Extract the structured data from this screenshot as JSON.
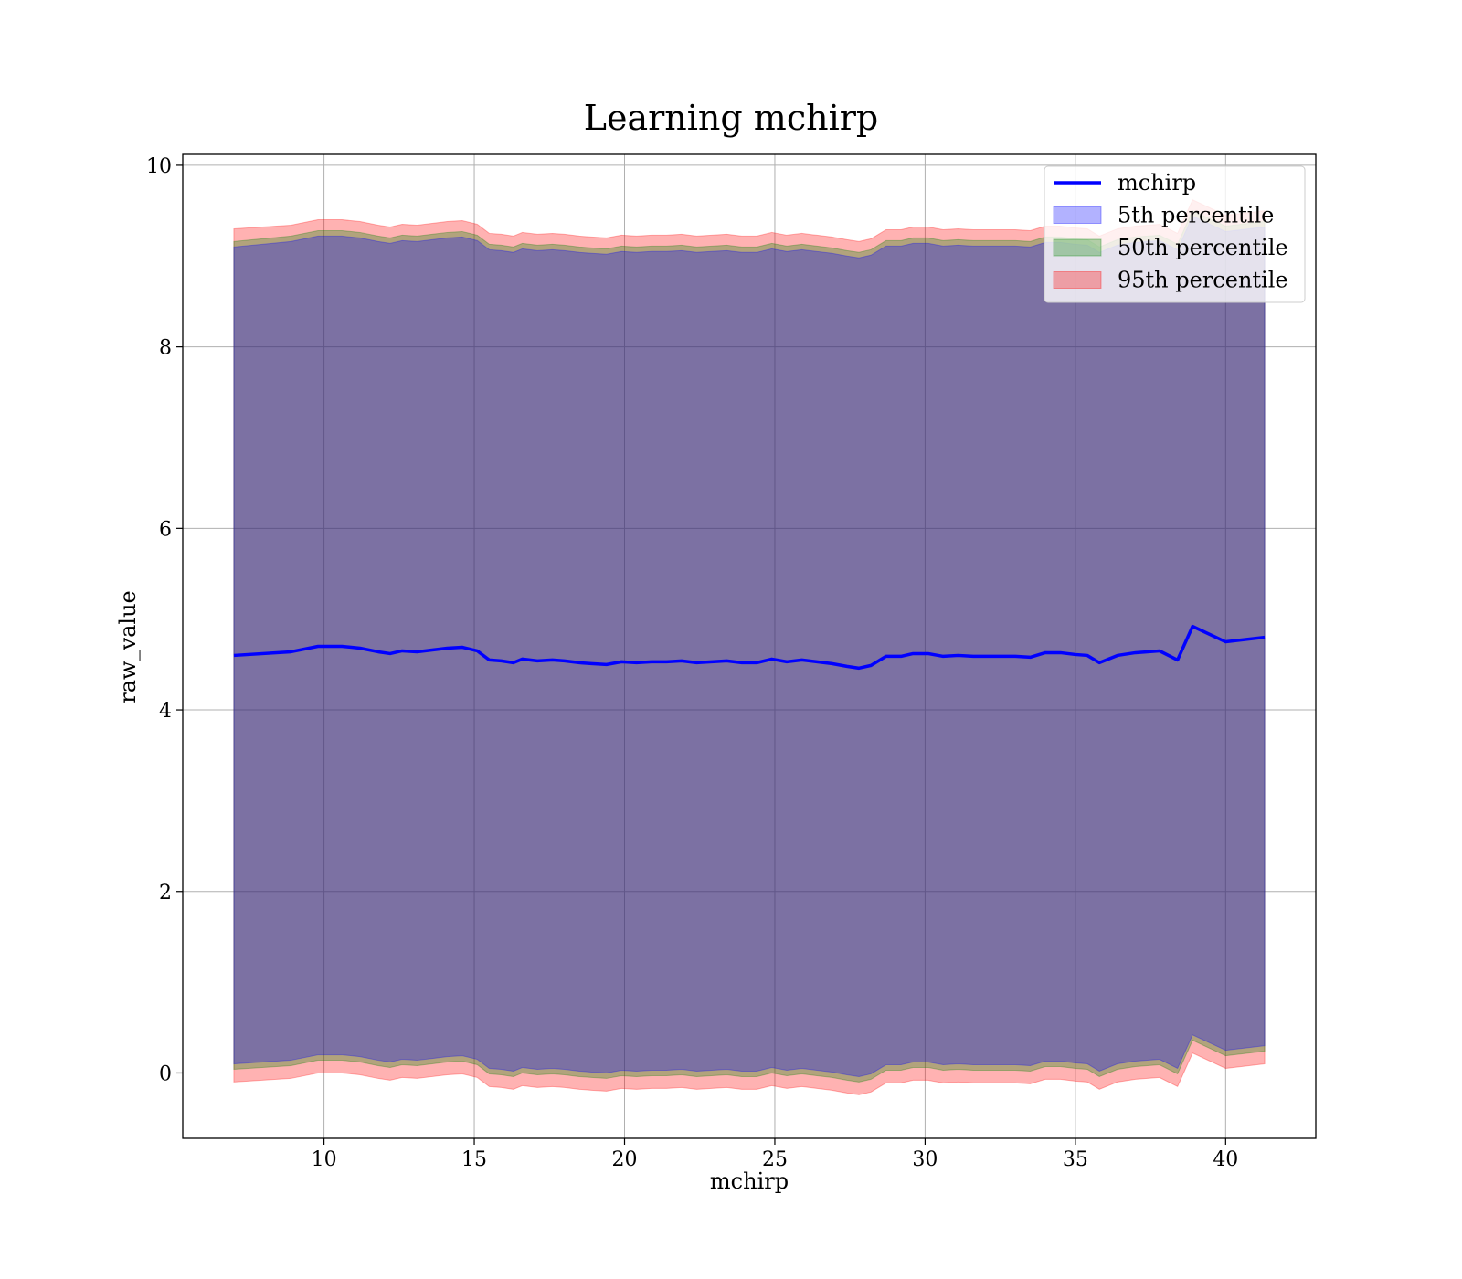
{
  "chart_data": {
    "type": "area",
    "title": "Learning mchirp",
    "xlabel": "mchirp",
    "ylabel": "raw_value",
    "xlim": [
      5.3,
      43.0
    ],
    "ylim": [
      -0.72,
      10.12
    ],
    "grid": true,
    "legend_position": "top-right",
    "x_ticks": [
      10,
      15,
      20,
      25,
      30,
      35,
      40
    ],
    "y_ticks": [
      0,
      2,
      4,
      6,
      8,
      10
    ],
    "x": [
      7.0,
      8.9,
      9.8,
      10.6,
      11.2,
      11.8,
      12.2,
      12.6,
      13.1,
      13.6,
      14.1,
      14.6,
      15.1,
      15.5,
      15.9,
      16.3,
      16.6,
      17.1,
      17.6,
      18.0,
      18.5,
      18.9,
      19.4,
      19.9,
      20.4,
      20.9,
      21.4,
      21.9,
      22.4,
      22.9,
      23.4,
      23.9,
      24.4,
      24.9,
      25.4,
      25.9,
      26.4,
      26.9,
      27.4,
      27.8,
      28.2,
      28.7,
      29.2,
      29.6,
      30.1,
      30.6,
      31.1,
      31.6,
      32.1,
      32.6,
      33.0,
      33.5,
      34.0,
      34.5,
      35.0,
      35.4,
      35.8,
      36.4,
      37.0,
      37.8,
      38.4,
      38.9,
      40.0,
      41.3
    ],
    "series": [
      {
        "name": "mchirp",
        "values": [
          4.6,
          4.64,
          4.7,
          4.7,
          4.68,
          4.64,
          4.62,
          4.65,
          4.64,
          4.66,
          4.68,
          4.69,
          4.65,
          4.55,
          4.54,
          4.52,
          4.56,
          4.54,
          4.55,
          4.54,
          4.52,
          4.51,
          4.5,
          4.53,
          4.52,
          4.53,
          4.53,
          4.54,
          4.52,
          4.53,
          4.54,
          4.52,
          4.52,
          4.56,
          4.53,
          4.55,
          4.53,
          4.51,
          4.48,
          4.46,
          4.49,
          4.59,
          4.59,
          4.62,
          4.62,
          4.59,
          4.6,
          4.59,
          4.59,
          4.59,
          4.59,
          4.58,
          4.63,
          4.63,
          4.61,
          4.6,
          4.52,
          4.6,
          4.63,
          4.65,
          4.55,
          4.92,
          4.75,
          4.8
        ]
      },
      {
        "name": "5th percentile",
        "upper": [
          9.1,
          9.16,
          9.22,
          9.22,
          9.2,
          9.16,
          9.14,
          9.17,
          9.16,
          9.18,
          9.2,
          9.21,
          9.17,
          9.07,
          9.06,
          9.04,
          9.08,
          9.06,
          9.07,
          9.06,
          9.04,
          9.03,
          9.02,
          9.05,
          9.04,
          9.05,
          9.05,
          9.06,
          9.04,
          9.05,
          9.06,
          9.04,
          9.04,
          9.08,
          9.05,
          9.07,
          9.05,
          9.03,
          9.0,
          8.98,
          9.01,
          9.11,
          9.11,
          9.14,
          9.14,
          9.11,
          9.12,
          9.11,
          9.11,
          9.11,
          9.11,
          9.1,
          9.15,
          9.15,
          9.13,
          9.12,
          9.04,
          9.12,
          9.15,
          9.17,
          9.07,
          9.44,
          9.27,
          9.32
        ],
        "lower": [
          0.1,
          0.14,
          0.2,
          0.2,
          0.18,
          0.14,
          0.12,
          0.15,
          0.14,
          0.16,
          0.18,
          0.19,
          0.15,
          0.05,
          0.04,
          0.02,
          0.06,
          0.04,
          0.05,
          0.04,
          0.02,
          0.01,
          0.0,
          0.03,
          0.02,
          0.03,
          0.03,
          0.04,
          0.02,
          0.03,
          0.04,
          0.02,
          0.02,
          0.06,
          0.03,
          0.05,
          0.03,
          0.01,
          -0.02,
          -0.04,
          -0.01,
          0.09,
          0.09,
          0.12,
          0.12,
          0.09,
          0.1,
          0.09,
          0.09,
          0.09,
          0.09,
          0.08,
          0.13,
          0.13,
          0.11,
          0.1,
          0.02,
          0.1,
          0.13,
          0.15,
          0.05,
          0.42,
          0.25,
          0.3
        ]
      },
      {
        "name": "50th percentile",
        "upper": [
          9.16,
          9.22,
          9.28,
          9.28,
          9.26,
          9.22,
          9.2,
          9.23,
          9.22,
          9.24,
          9.26,
          9.27,
          9.23,
          9.13,
          9.12,
          9.1,
          9.14,
          9.12,
          9.13,
          9.12,
          9.1,
          9.09,
          9.08,
          9.11,
          9.1,
          9.11,
          9.11,
          9.12,
          9.1,
          9.11,
          9.12,
          9.1,
          9.1,
          9.14,
          9.11,
          9.13,
          9.11,
          9.09,
          9.06,
          9.04,
          9.07,
          9.17,
          9.17,
          9.2,
          9.2,
          9.17,
          9.18,
          9.17,
          9.17,
          9.17,
          9.17,
          9.16,
          9.21,
          9.21,
          9.19,
          9.18,
          9.1,
          9.18,
          9.21,
          9.23,
          9.13,
          9.5,
          9.33,
          9.38
        ],
        "lower": [
          0.04,
          0.08,
          0.14,
          0.14,
          0.12,
          0.08,
          0.06,
          0.09,
          0.08,
          0.1,
          0.12,
          0.13,
          0.09,
          -0.01,
          -0.02,
          -0.04,
          0.0,
          -0.02,
          -0.01,
          -0.02,
          -0.04,
          -0.05,
          -0.06,
          -0.03,
          -0.04,
          -0.03,
          -0.03,
          -0.02,
          -0.04,
          -0.03,
          -0.02,
          -0.04,
          -0.04,
          0.0,
          -0.03,
          -0.01,
          -0.03,
          -0.05,
          -0.08,
          -0.1,
          -0.07,
          0.03,
          0.03,
          0.06,
          0.06,
          0.03,
          0.04,
          0.03,
          0.03,
          0.03,
          0.03,
          0.02,
          0.07,
          0.07,
          0.05,
          0.04,
          -0.04,
          0.04,
          0.07,
          0.09,
          -0.01,
          0.36,
          0.19,
          0.24
        ]
      },
      {
        "name": "95th percentile",
        "upper": [
          9.3,
          9.34,
          9.4,
          9.4,
          9.38,
          9.34,
          9.32,
          9.35,
          9.34,
          9.36,
          9.38,
          9.39,
          9.35,
          9.25,
          9.24,
          9.22,
          9.26,
          9.24,
          9.25,
          9.24,
          9.22,
          9.21,
          9.2,
          9.23,
          9.22,
          9.23,
          9.23,
          9.24,
          9.22,
          9.23,
          9.24,
          9.22,
          9.22,
          9.26,
          9.23,
          9.25,
          9.23,
          9.21,
          9.18,
          9.16,
          9.19,
          9.29,
          9.29,
          9.32,
          9.32,
          9.29,
          9.3,
          9.29,
          9.29,
          9.29,
          9.29,
          9.28,
          9.33,
          9.33,
          9.31,
          9.3,
          9.22,
          9.3,
          9.33,
          9.35,
          9.25,
          9.62,
          9.45,
          9.5
        ],
        "lower": [
          -0.1,
          -0.06,
          0.0,
          0.0,
          -0.02,
          -0.06,
          -0.08,
          -0.05,
          -0.06,
          -0.04,
          -0.02,
          -0.01,
          -0.05,
          -0.15,
          -0.16,
          -0.18,
          -0.14,
          -0.16,
          -0.15,
          -0.16,
          -0.18,
          -0.19,
          -0.2,
          -0.17,
          -0.18,
          -0.17,
          -0.17,
          -0.16,
          -0.18,
          -0.17,
          -0.16,
          -0.18,
          -0.18,
          -0.14,
          -0.17,
          -0.15,
          -0.17,
          -0.19,
          -0.22,
          -0.24,
          -0.21,
          -0.11,
          -0.11,
          -0.08,
          -0.08,
          -0.11,
          -0.1,
          -0.11,
          -0.11,
          -0.11,
          -0.11,
          -0.12,
          -0.07,
          -0.07,
          -0.09,
          -0.1,
          -0.18,
          -0.1,
          -0.07,
          -0.05,
          -0.15,
          0.22,
          0.05,
          0.1
        ]
      }
    ],
    "colors": {
      "line": "#0000ff",
      "band_5th": "#0000ff",
      "band_50th": "#008000",
      "band_95th": "#ff0000",
      "grid": "#b0b0b0"
    }
  }
}
